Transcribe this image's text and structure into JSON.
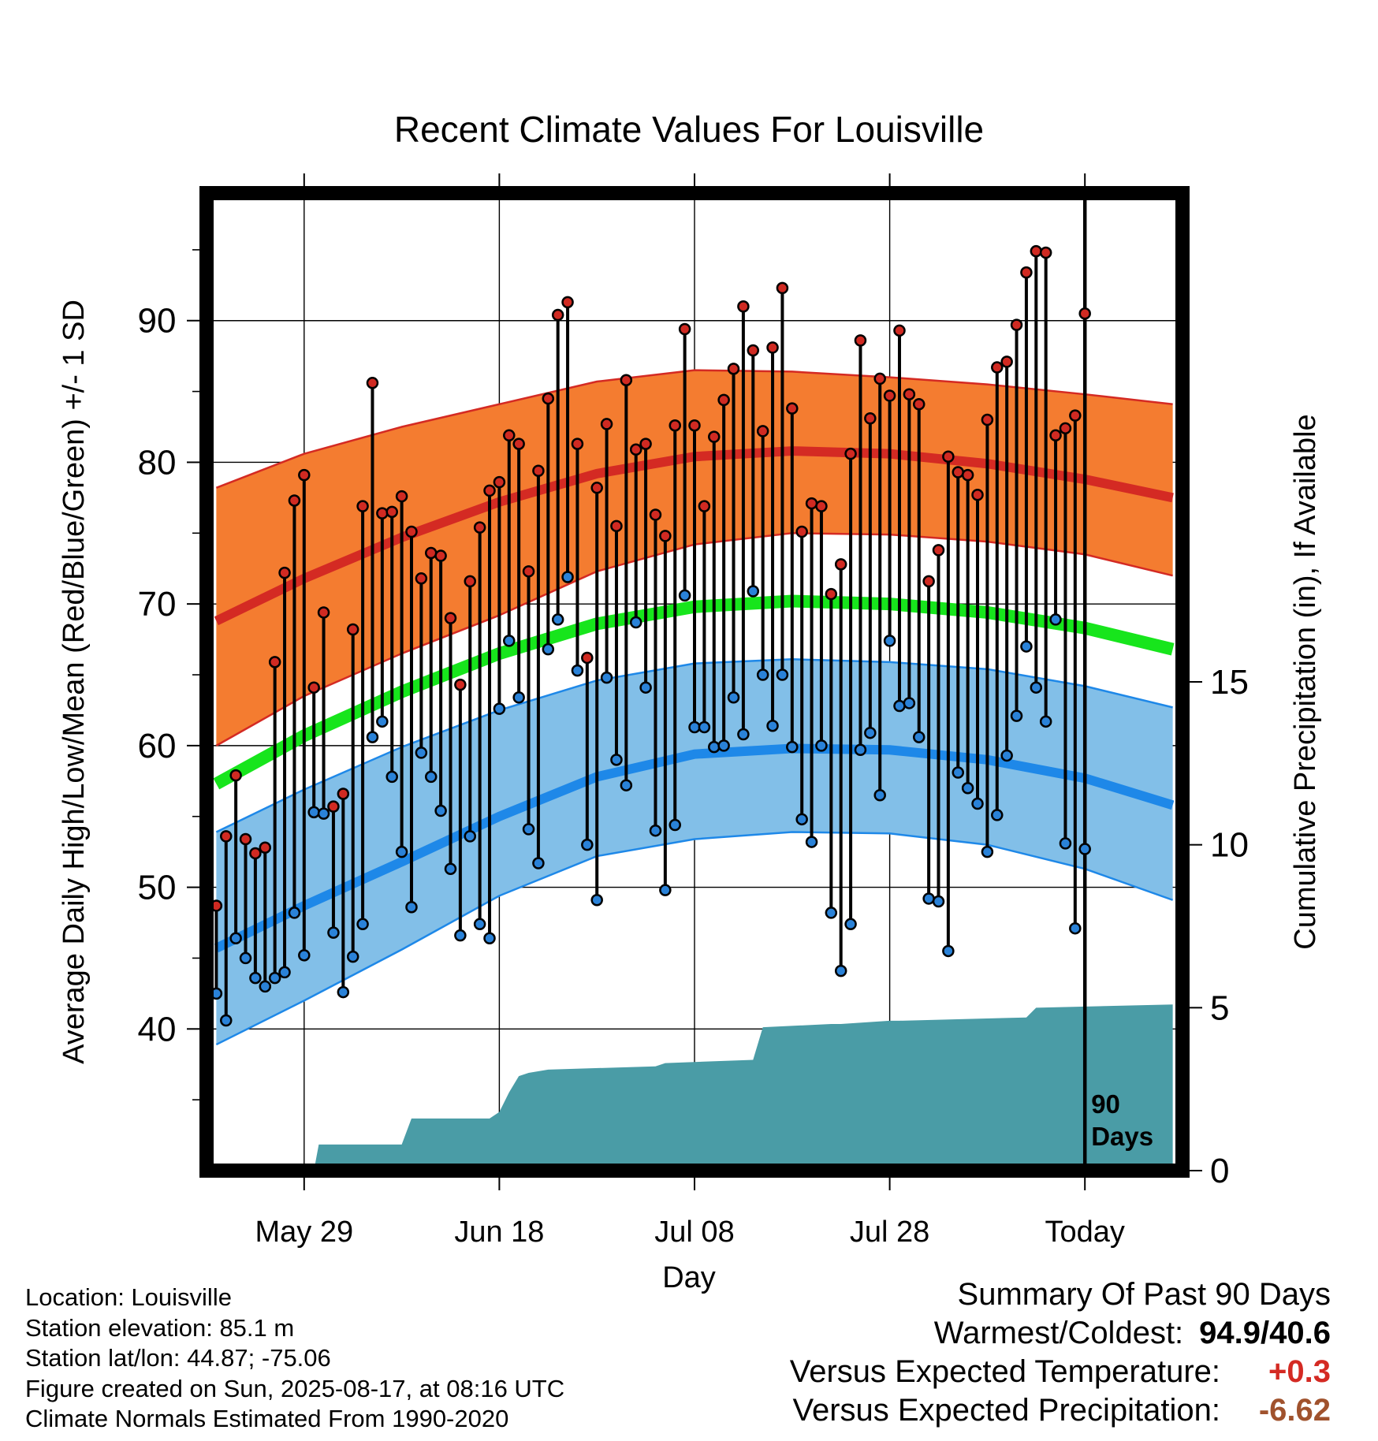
{
  "chart_data": {
    "type": "line",
    "title": "Recent Climate Values For Louisville",
    "xlabel": "Day",
    "ylabel": "Average Daily High/Low/Mean (Red/Blue/Green) +/- 1 SD",
    "y2label": "Cumulative Precipitation (in), If Available",
    "ylim": [
      30,
      99
    ],
    "y2lim": [
      0,
      30
    ],
    "xlim_days": [
      -90,
      10
    ],
    "y_ticks": [
      40,
      50,
      60,
      70,
      80,
      90
    ],
    "y2_ticks": [
      0,
      5,
      10,
      15
    ],
    "x_ticks": [
      {
        "day": -80,
        "label": "May 29"
      },
      {
        "day": -60,
        "label": "Jun 18"
      },
      {
        "day": -40,
        "label": "Jul 08"
      },
      {
        "day": -20,
        "label": "Jul 28"
      },
      {
        "day": 0,
        "label": "Today"
      }
    ],
    "today_label": [
      "90",
      "Days"
    ],
    "grid": true,
    "colors": {
      "high_band": "#f47c30",
      "high_mean": "#d42a23",
      "low_band": "#82bfe8",
      "low_mean": "#1e88e8",
      "mean_line": "#17e51c",
      "precip": "#4a9ca6",
      "high_marker": "#d02a22",
      "low_marker": "#2a82d8"
    },
    "normals": {
      "days": [
        -89,
        -80,
        -70,
        -60,
        -50,
        -40,
        -30,
        -20,
        -10,
        0,
        9
      ],
      "high_mean": [
        68.8,
        71.8,
        74.7,
        77.2,
        79.2,
        80.4,
        80.8,
        80.6,
        79.9,
        78.8,
        77.5
      ],
      "high_sd_upper": [
        78.2,
        80.6,
        82.5,
        84.1,
        85.7,
        86.5,
        86.4,
        86.0,
        85.5,
        84.8,
        84.1
      ],
      "high_sd_lower": [
        60.0,
        63.5,
        66.5,
        69.2,
        72.3,
        74.2,
        75.0,
        74.9,
        74.4,
        73.5,
        72.0
      ],
      "mean": [
        57.3,
        60.7,
        63.8,
        66.5,
        68.6,
        69.8,
        70.2,
        70.0,
        69.4,
        68.3,
        66.8
      ],
      "low_mean": [
        45.7,
        48.7,
        51.8,
        55.0,
        57.8,
        59.4,
        59.8,
        59.7,
        59.0,
        57.7,
        55.8
      ],
      "low_sd_upper": [
        53.9,
        56.9,
        59.9,
        62.5,
        64.6,
        65.8,
        66.1,
        65.9,
        65.4,
        64.2,
        62.7
      ],
      "low_sd_lower": [
        38.9,
        42.0,
        45.6,
        49.4,
        52.2,
        53.4,
        53.9,
        53.8,
        53.0,
        51.3,
        49.1
      ]
    },
    "series": [
      {
        "name": "High",
        "values": [
          48.7,
          53.6,
          57.9,
          53.4,
          52.4,
          52.8,
          65.9,
          72.2,
          77.3,
          79.1,
          64.1,
          69.4,
          55.7,
          56.6,
          68.2,
          76.9,
          85.6,
          76.4,
          76.5,
          77.6,
          75.1,
          71.8,
          73.6,
          73.4,
          69.0,
          64.3,
          71.6,
          75.4,
          78.0,
          78.6,
          81.9,
          81.3,
          72.3,
          79.4,
          84.5,
          90.4,
          91.3,
          81.3,
          66.2,
          78.2,
          82.7,
          75.5,
          85.8,
          80.9,
          81.3,
          76.3,
          74.8,
          82.6,
          89.4,
          82.6,
          76.9,
          81.8,
          84.4,
          86.6,
          91.0,
          87.9,
          82.2,
          88.1,
          92.3,
          83.8,
          75.1,
          77.1,
          76.9,
          70.7,
          72.8,
          80.6,
          88.6,
          83.1,
          85.9,
          84.7,
          89.3,
          84.8,
          84.1,
          71.6,
          73.8,
          80.4,
          79.3,
          79.1,
          77.7,
          83.0,
          86.7,
          87.1,
          89.7,
          93.4,
          94.9,
          94.8,
          81.9,
          82.4,
          83.3,
          90.5
        ]
      },
      {
        "name": "Low",
        "values": [
          42.5,
          40.6,
          46.4,
          45.0,
          43.6,
          43.0,
          43.6,
          44.0,
          48.2,
          45.2,
          55.3,
          55.2,
          46.8,
          42.6,
          45.1,
          47.4,
          60.6,
          61.7,
          57.8,
          52.5,
          48.6,
          59.5,
          57.8,
          55.4,
          51.3,
          46.6,
          53.6,
          47.4,
          46.4,
          62.6,
          67.4,
          63.4,
          54.1,
          51.7,
          66.8,
          68.9,
          71.9,
          65.3,
          53.0,
          49.1,
          64.8,
          59.0,
          57.2,
          68.7,
          64.1,
          54.0,
          49.8,
          54.4,
          70.6,
          61.3,
          61.3,
          59.9,
          60.0,
          63.4,
          60.8,
          70.9,
          65.0,
          61.4,
          65.0,
          59.9,
          54.8,
          53.2,
          60.0,
          48.2,
          44.1,
          47.4,
          59.7,
          60.9,
          56.5,
          67.4,
          62.8,
          63.0,
          60.6,
          49.2,
          49.0,
          45.5,
          58.1,
          57.0,
          55.9,
          52.5,
          55.1,
          59.3,
          62.1,
          67.0,
          64.1,
          61.7,
          68.9,
          53.1,
          47.1,
          52.7
        ]
      }
    ],
    "precip": {
      "days": [
        -90,
        -79,
        -78.5,
        -70,
        -69,
        -61,
        -60,
        -59,
        -58,
        -57,
        -55,
        -44,
        -43,
        -34,
        -33,
        -26,
        -25,
        -20,
        -19,
        -6,
        -5,
        9
      ],
      "cumulative": [
        0,
        0,
        0.8,
        0.8,
        1.6,
        1.6,
        1.8,
        2.4,
        2.9,
        3.0,
        3.1,
        3.2,
        3.3,
        3.4,
        4.4,
        4.5,
        4.5,
        4.6,
        4.6,
        4.7,
        5.0,
        5.1
      ]
    }
  },
  "footer": {
    "location": "Location: Louisville",
    "elevation": "Station elevation: 85.1 m",
    "latlon": "Station lat/lon: 44.87; -75.06",
    "created": "Figure created on Sun, 2025-08-17, at 08:16 UTC",
    "normals": "Climate Normals Estimated From 1990-2020"
  },
  "summary": {
    "heading": "Summary Of Past 90 Days",
    "warmest_coldest_label": "Warmest/Coldest:",
    "warmest_coldest_value": "94.9/40.6",
    "temp_label": "Versus Expected Temperature:",
    "temp_value": "+0.3",
    "temp_color": "#d42a23",
    "precip_label": "Versus Expected Precipitation:",
    "precip_value": "-6.62",
    "precip_color": "#a0522d"
  }
}
